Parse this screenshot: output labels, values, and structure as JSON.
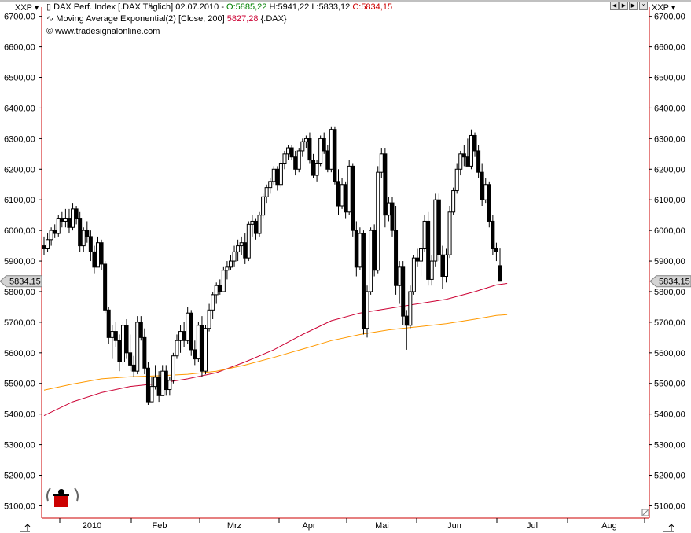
{
  "header": {
    "symbol_left": "XXP",
    "symbol_right": "XXP",
    "line1_prefix": "DAX Perf. Index [.DAX  Täglich] 02.07.2010 - ",
    "open": "O:5885,22",
    "high": "H:5941,22",
    "low": "L:5833,12",
    "close": "C:5834,15",
    "line2_prefix": "Moving Average Exponential(2) [Close, 200] ",
    "ma_value": "5827,28",
    "line2_suffix": " {.DAX}",
    "copyright": "© www.tradesignalonline.com"
  },
  "price_tag": "5834,15",
  "colors": {
    "frame": "#cc0000",
    "ma_red": "#cc0033",
    "ma_orange": "#ff9900",
    "candle": "#000000",
    "red_text": "#cc0000",
    "green_text": "#008000"
  },
  "chart_data": {
    "type": "candlestick",
    "ylim": [
      5060,
      6730
    ],
    "y_ticks": [
      "6700,00",
      "6600,00",
      "6500,00",
      "6400,00",
      "6300,00",
      "6200,00",
      "6100,00",
      "6000,00",
      "5900,00",
      "5800,00",
      "5700,00",
      "5600,00",
      "5500,00",
      "5400,00",
      "5300,00",
      "5200,00",
      "5100,00"
    ],
    "x_ticks": [
      "2010",
      "Feb",
      "Mrz",
      "Apr",
      "Mai",
      "Jun",
      "Jul",
      "Aug"
    ],
    "candles": [
      [
        5950,
        5980,
        5920,
        5940
      ],
      [
        5940,
        5990,
        5930,
        5970
      ],
      [
        5970,
        6010,
        5950,
        6000
      ],
      [
        6000,
        6020,
        5975,
        5990
      ],
      [
        5990,
        6050,
        5980,
        6040
      ],
      [
        6040,
        6060,
        6010,
        6030
      ],
      [
        6030,
        6070,
        6010,
        6040
      ],
      [
        6040,
        6070,
        5990,
        6010
      ],
      [
        6010,
        6090,
        6000,
        6070
      ],
      [
        6070,
        6080,
        6020,
        6040
      ],
      [
        6040,
        6060,
        5930,
        5950
      ],
      [
        5950,
        6010,
        5930,
        6000
      ],
      [
        6000,
        6030,
        5960,
        5980
      ],
      [
        5980,
        6000,
        5900,
        5930
      ],
      [
        5930,
        5950,
        5860,
        5880
      ],
      [
        5880,
        5980,
        5880,
        5960
      ],
      [
        5960,
        5970,
        5870,
        5890
      ],
      [
        5890,
        5900,
        5730,
        5740
      ],
      [
        5740,
        5750,
        5630,
        5650
      ],
      [
        5650,
        5690,
        5580,
        5670
      ],
      [
        5670,
        5700,
        5620,
        5640
      ],
      [
        5640,
        5660,
        5540,
        5570
      ],
      [
        5570,
        5700,
        5560,
        5690
      ],
      [
        5690,
        5710,
        5580,
        5600
      ],
      [
        5600,
        5660,
        5540,
        5560
      ],
      [
        5560,
        5590,
        5520,
        5540
      ],
      [
        5540,
        5720,
        5530,
        5700
      ],
      [
        5700,
        5720,
        5640,
        5650
      ],
      [
        5650,
        5680,
        5530,
        5550
      ],
      [
        5550,
        5570,
        5430,
        5440
      ],
      [
        5440,
        5520,
        5440,
        5490
      ],
      [
        5490,
        5560,
        5480,
        5520
      ],
      [
        5520,
        5540,
        5440,
        5460
      ],
      [
        5460,
        5560,
        5460,
        5540
      ],
      [
        5540,
        5560,
        5460,
        5480
      ],
      [
        5480,
        5520,
        5460,
        5510
      ],
      [
        5510,
        5600,
        5500,
        5590
      ],
      [
        5590,
        5660,
        5580,
        5640
      ],
      [
        5640,
        5690,
        5600,
        5670
      ],
      [
        5670,
        5700,
        5620,
        5640
      ],
      [
        5640,
        5750,
        5630,
        5730
      ],
      [
        5730,
        5740,
        5590,
        5610
      ],
      [
        5610,
        5640,
        5560,
        5580
      ],
      [
        5580,
        5700,
        5570,
        5690
      ],
      [
        5690,
        5720,
        5520,
        5540
      ],
      [
        5540,
        5690,
        5530,
        5680
      ],
      [
        5680,
        5760,
        5670,
        5740
      ],
      [
        5740,
        5800,
        5710,
        5790
      ],
      [
        5790,
        5830,
        5760,
        5820
      ],
      [
        5820,
        5840,
        5790,
        5800
      ],
      [
        5800,
        5880,
        5800,
        5870
      ],
      [
        5870,
        5900,
        5840,
        5880
      ],
      [
        5880,
        5920,
        5870,
        5900
      ],
      [
        5900,
        5950,
        5880,
        5930
      ],
      [
        5930,
        5970,
        5900,
        5950
      ],
      [
        5950,
        5980,
        5920,
        5960
      ],
      [
        5960,
        5990,
        5890,
        5910
      ],
      [
        5910,
        6030,
        5900,
        6020
      ],
      [
        6020,
        6050,
        5980,
        6030
      ],
      [
        6030,
        6040,
        5970,
        5990
      ],
      [
        5990,
        6060,
        5980,
        6050
      ],
      [
        6050,
        6120,
        6040,
        6110
      ],
      [
        6110,
        6150,
        6090,
        6140
      ],
      [
        6140,
        6170,
        6120,
        6160
      ],
      [
        6160,
        6210,
        6150,
        6200
      ],
      [
        6200,
        6210,
        6130,
        6150
      ],
      [
        6150,
        6230,
        6140,
        6220
      ],
      [
        6220,
        6260,
        6200,
        6250
      ],
      [
        6250,
        6280,
        6230,
        6270
      ],
      [
        6270,
        6280,
        6230,
        6240
      ],
      [
        6240,
        6260,
        6180,
        6200
      ],
      [
        6200,
        6270,
        6190,
        6260
      ],
      [
        6260,
        6300,
        6240,
        6290
      ],
      [
        6290,
        6310,
        6270,
        6300
      ],
      [
        6300,
        6320,
        6220,
        6230
      ],
      [
        6230,
        6250,
        6170,
        6180
      ],
      [
        6180,
        6230,
        6160,
        6220
      ],
      [
        6220,
        6310,
        6210,
        6300
      ],
      [
        6300,
        6320,
        6250,
        6260
      ],
      [
        6260,
        6280,
        6190,
        6200
      ],
      [
        6200,
        6340,
        6190,
        6330
      ],
      [
        6330,
        6340,
        6150,
        6160
      ],
      [
        6160,
        6200,
        6050,
        6080
      ],
      [
        6080,
        6170,
        6070,
        6150
      ],
      [
        6150,
        6160,
        6040,
        6060
      ],
      [
        6060,
        6230,
        6050,
        6210
      ],
      [
        6210,
        6220,
        5980,
        6000
      ],
      [
        6000,
        6030,
        5850,
        5880
      ],
      [
        5880,
        6010,
        5870,
        5990
      ],
      [
        5990,
        6000,
        5660,
        5680
      ],
      [
        5680,
        5820,
        5650,
        5800
      ],
      [
        5800,
        6010,
        5790,
        6000
      ],
      [
        6000,
        6020,
        5850,
        5870
      ],
      [
        5870,
        6210,
        5860,
        6190
      ],
      [
        6190,
        6270,
        6170,
        6250
      ],
      [
        6250,
        6270,
        6010,
        6050
      ],
      [
        6050,
        6110,
        6030,
        6090
      ],
      [
        6090,
        6110,
        5980,
        6000
      ],
      [
        6000,
        6080,
        5790,
        5820
      ],
      [
        5820,
        5900,
        5760,
        5880
      ],
      [
        5880,
        5900,
        5690,
        5720
      ],
      [
        5720,
        5740,
        5610,
        5690
      ],
      [
        5690,
        5820,
        5680,
        5800
      ],
      [
        5800,
        5920,
        5790,
        5910
      ],
      [
        5910,
        5940,
        5880,
        5900
      ],
      [
        5900,
        5960,
        5850,
        5940
      ],
      [
        5940,
        6050,
        5930,
        6030
      ],
      [
        6030,
        6060,
        5820,
        5840
      ],
      [
        5840,
        5920,
        5820,
        5900
      ],
      [
        5900,
        6120,
        5880,
        6100
      ],
      [
        6100,
        6120,
        5900,
        5920
      ],
      [
        5920,
        5950,
        5810,
        5850
      ],
      [
        5850,
        5940,
        5830,
        5920
      ],
      [
        5920,
        6080,
        5910,
        6060
      ],
      [
        6060,
        6140,
        6050,
        6130
      ],
      [
        6130,
        6220,
        6120,
        6200
      ],
      [
        6200,
        6260,
        6180,
        6250
      ],
      [
        6250,
        6280,
        6210,
        6240
      ],
      [
        6240,
        6300,
        6220,
        6210
      ],
      [
        6210,
        6330,
        6200,
        6310
      ],
      [
        6310,
        6320,
        6240,
        6260
      ],
      [
        6260,
        6280,
        6170,
        6190
      ],
      [
        6190,
        6220,
        6080,
        6100
      ],
      [
        6100,
        6170,
        6090,
        6150
      ],
      [
        6150,
        6160,
        6010,
        6030
      ],
      [
        6030,
        6050,
        5920,
        5940
      ],
      [
        5940,
        5960,
        5900,
        5930
      ],
      [
        5885,
        5941,
        5833,
        5834
      ]
    ],
    "series": [
      {
        "name": "Moving Average Exponential(2) [Close, 200]",
        "points": [
          [
            0,
            5395
          ],
          [
            8,
            5440
          ],
          [
            16,
            5470
          ],
          [
            24,
            5490
          ],
          [
            32,
            5500
          ],
          [
            40,
            5515
          ],
          [
            48,
            5535
          ],
          [
            56,
            5570
          ],
          [
            64,
            5610
          ],
          [
            72,
            5660
          ],
          [
            80,
            5705
          ],
          [
            88,
            5730
          ],
          [
            96,
            5745
          ],
          [
            104,
            5760
          ],
          [
            112,
            5775
          ],
          [
            120,
            5800
          ],
          [
            126,
            5822
          ],
          [
            129,
            5827
          ]
        ]
      },
      {
        "name": "",
        "points": [
          [
            0,
            5478
          ],
          [
            8,
            5498
          ],
          [
            16,
            5515
          ],
          [
            24,
            5522
          ],
          [
            32,
            5525
          ],
          [
            40,
            5530
          ],
          [
            48,
            5540
          ],
          [
            56,
            5560
          ],
          [
            64,
            5585
          ],
          [
            72,
            5612
          ],
          [
            80,
            5640
          ],
          [
            88,
            5660
          ],
          [
            96,
            5675
          ],
          [
            104,
            5685
          ],
          [
            112,
            5695
          ],
          [
            120,
            5710
          ],
          [
            126,
            5722
          ],
          [
            129,
            5725
          ]
        ]
      }
    ]
  }
}
